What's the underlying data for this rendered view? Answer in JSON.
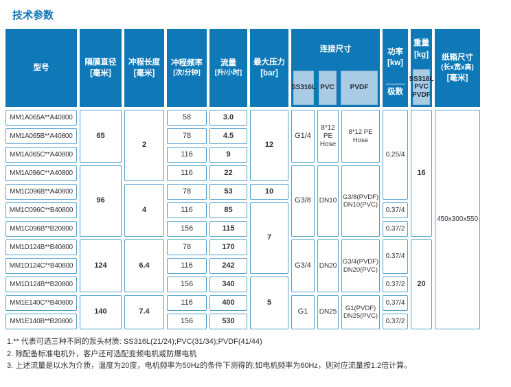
{
  "title": "技术参数",
  "colors": {
    "header_blue": "#0F79B8",
    "subheader_blue": "#A9CBE4",
    "cell_border": "#4F9FCB"
  },
  "header": {
    "model": "型号",
    "diaphragm": "隔膜直径",
    "diaphragm_unit": "[毫米]",
    "stroke_length": "冲程长度",
    "stroke_length_unit": "[毫米]",
    "stroke_frequency": "冲程频率",
    "stroke_frequency_unit": "[次/分钟]",
    "flow": "流量",
    "flow_unit": "[升/小时]",
    "max_pressure": "最大压力",
    "max_pressure_unit": "[bar]",
    "connection": "连接尺寸",
    "connection_subs": [
      "SS316L",
      "PVC",
      "PVDF"
    ],
    "power": "功率",
    "power_unit": "[kw]",
    "power_sub": "极数",
    "weight": "重量",
    "weight_unit": "[kg]",
    "weight_sub": "SS316L\nPVC\nPVDF",
    "carton": "纸箱尺寸",
    "carton_dims": "(长x宽x高)",
    "carton_unit": "[毫米]"
  },
  "rows": [
    {
      "model": "MM1A065A**A40800",
      "frequency": "58",
      "flow": "3.0"
    },
    {
      "model": "MM1A065B**A40800",
      "frequency": "78",
      "flow": "4.5"
    },
    {
      "model": "MM1A065C**A40800",
      "frequency": "116",
      "flow": "9"
    },
    {
      "model": "MM1A096C**A40800",
      "frequency": "116",
      "flow": "22"
    },
    {
      "model": "MM1C096B**A40800",
      "frequency": "78",
      "flow": "53"
    },
    {
      "model": "MM1C096C**B40800",
      "frequency": "116",
      "flow": "85"
    },
    {
      "model": "MM1C096B**B20800",
      "frequency": "156",
      "flow": "115"
    },
    {
      "model": "MM1D124B**B40800",
      "frequency": "78",
      "flow": "170"
    },
    {
      "model": "MM1D124C**B40800",
      "frequency": "116",
      "flow": "242"
    },
    {
      "model": "MM1D124B**B20800",
      "frequency": "156",
      "flow": "340"
    },
    {
      "model": "MM1E140C**B40800",
      "frequency": "116",
      "flow": "400"
    },
    {
      "model": "MM1E140B**B20800",
      "frequency": "156",
      "flow": "530"
    }
  ],
  "merged": {
    "diaphragm": [
      {
        "value": "65",
        "rows": "1-3"
      },
      {
        "value": "96",
        "rows": "4-7"
      },
      {
        "value": "124",
        "rows": "8-10"
      },
      {
        "value": "140",
        "rows": "11-12"
      }
    ],
    "stroke_length": [
      {
        "value": "2",
        "rows": "1-4"
      },
      {
        "value": "4",
        "rows": "5-7"
      },
      {
        "value": "6.4",
        "rows": "8-10"
      },
      {
        "value": "7.4",
        "rows": "11-12"
      }
    ],
    "max_pressure": [
      {
        "value": "12",
        "rows": "1-4"
      },
      {
        "value": "10",
        "rows": "5"
      },
      {
        "value": "7",
        "rows": "6-9"
      },
      {
        "value": "5",
        "rows": "10-12"
      }
    ],
    "connection": [
      {
        "ss316l": "G1/4",
        "pvc": "8*12 PE Hose",
        "pvdf": "8*12 PE Hose",
        "rows": "1-3"
      },
      {
        "ss316l": "G3/8",
        "pvc": "DN10",
        "pvdf": "G3/8(PVDF) DN10(PVC)",
        "rows": "4-7"
      },
      {
        "ss316l": "G3/4",
        "pvc": "DN20",
        "pvdf": "G3/4(PVDF) DN20(PVC)",
        "rows": "8-10"
      },
      {
        "ss316l": "G1",
        "pvc": "DN25",
        "pvdf": "G1(PVDF) DN25(PVC)",
        "rows": "11-12"
      }
    ],
    "power": [
      {
        "value": "0.25/4",
        "rows": "1-5"
      },
      {
        "value": "0.37/4",
        "rows": "6"
      },
      {
        "value": "0.37/2",
        "rows": "7"
      },
      {
        "value": "0.37/4",
        "rows": "8-9"
      },
      {
        "value": "0.37/2",
        "rows": "10"
      },
      {
        "value": "0.37/4",
        "rows": "11"
      },
      {
        "value": "0.37/2",
        "rows": "12"
      }
    ],
    "weight": [
      {
        "value": "16",
        "rows": "1-7"
      },
      {
        "value": "20",
        "rows": "8-12"
      }
    ],
    "carton": [
      {
        "value": "450x300x550",
        "rows": "1-12"
      }
    ]
  },
  "footnotes": [
    "1.** 代表可选三种不同的泵头材质: SS316L(21/24);PVC(31/34);PVDF(41/44)",
    "2. 除配备标准电机外，客户还可选配变频电机或防爆电机",
    "3. 上述流量是以水为介质，温度为20度，电机频率为50Hz的条件下测得的;如电机频率为60Hz，则对应流量按1.2倍计算。"
  ]
}
